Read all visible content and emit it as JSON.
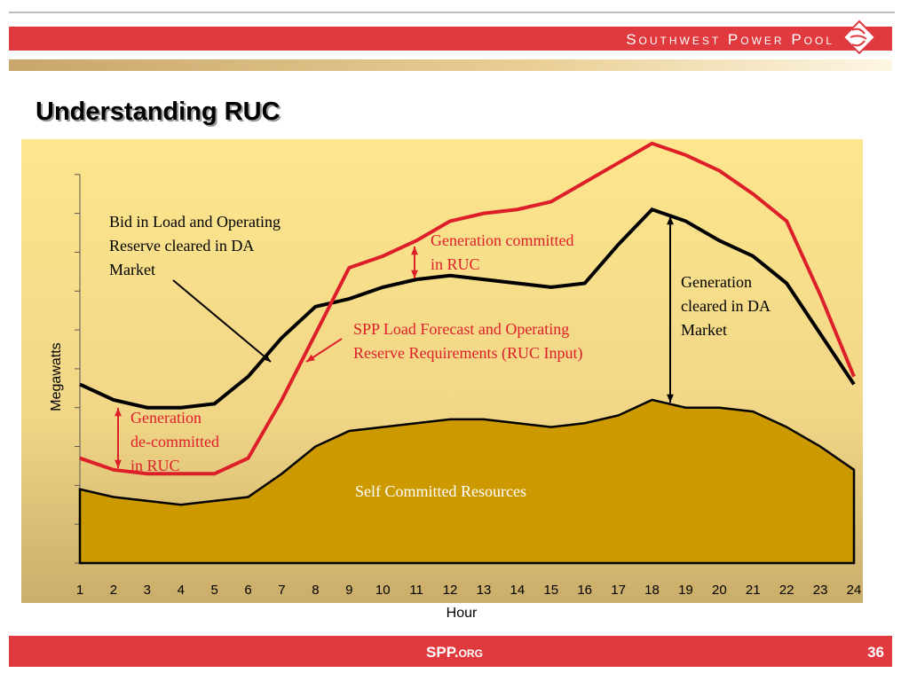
{
  "header": {
    "brand": "Southwest Power Pool",
    "title": "Understanding RUC"
  },
  "footer": {
    "site": "SPP.org",
    "page": "36"
  },
  "chart_data": {
    "type": "line",
    "x_label": "Hour",
    "y_label": "Megawatts",
    "categories": [
      "1",
      "2",
      "3",
      "4",
      "5",
      "6",
      "7",
      "8",
      "9",
      "10",
      "11",
      "12",
      "13",
      "14",
      "15",
      "16",
      "17",
      "18",
      "19",
      "20",
      "21",
      "22",
      "23",
      "24"
    ],
    "ylim": [
      0,
      11
    ],
    "yticks": [
      0,
      1,
      2,
      3,
      4,
      5,
      6,
      7,
      8,
      9,
      10
    ],
    "series": [
      {
        "name": "Self Committed Resources",
        "kind": "area",
        "color": "#cc9900",
        "values": [
          1.9,
          1.7,
          1.6,
          1.5,
          1.6,
          1.7,
          2.3,
          3.0,
          3.4,
          3.5,
          3.6,
          3.7,
          3.7,
          3.6,
          3.5,
          3.6,
          3.8,
          4.2,
          4.0,
          4.0,
          3.9,
          3.5,
          3.0,
          2.4
        ]
      },
      {
        "name": "Bid in Load and Operating Reserve cleared in DA Market",
        "kind": "line",
        "color": "#000000",
        "values": [
          4.6,
          4.2,
          4.0,
          4.0,
          4.1,
          4.8,
          5.8,
          6.6,
          6.8,
          7.1,
          7.3,
          7.4,
          7.3,
          7.2,
          7.1,
          7.2,
          8.2,
          9.1,
          8.8,
          8.3,
          7.9,
          7.2,
          5.9,
          4.6
        ]
      },
      {
        "name": "SPP Load Forecast and Operating Reserve Requirements (RUC Input)",
        "kind": "line",
        "color": "#dd1f2a",
        "values": [
          2.7,
          2.4,
          2.3,
          2.3,
          2.3,
          2.7,
          4.2,
          5.9,
          7.6,
          7.9,
          8.3,
          8.8,
          9.0,
          9.1,
          9.3,
          9.8,
          10.3,
          10.8,
          10.5,
          10.1,
          9.5,
          8.8,
          6.9,
          4.8
        ]
      }
    ],
    "annotations": [
      {
        "text": "Generation committed in RUC",
        "color": "#dd1f2a"
      },
      {
        "text": "Generation cleared in DA Market",
        "color": "#000000"
      },
      {
        "text": "Generation de-committed in RUC",
        "color": "#dd1f2a"
      }
    ]
  }
}
